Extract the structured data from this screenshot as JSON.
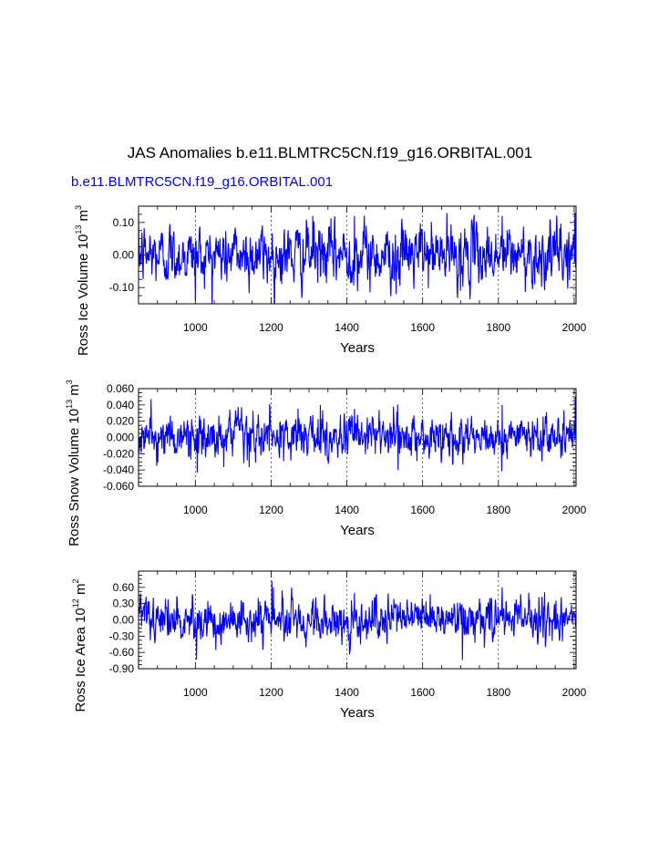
{
  "figure": {
    "title": "JAS Anomalies b.e11.BLMTRC5CN.f19_g16.ORBITAL.001",
    "subtitle": "b.e11.BLMTRC5CN.f19_g16.ORBITAL.001",
    "line_color": "#0000ff"
  },
  "chart_data": [
    {
      "type": "line",
      "ylabel": "Ross Ice Volume 10",
      "ylabel_exp1": "13",
      "ylabel_unit": " m",
      "ylabel_exp2": "3",
      "xlabel": "Years",
      "xlim": [
        850,
        2005
      ],
      "ylim": [
        -0.15,
        0.15
      ],
      "xticks": [
        1000,
        1200,
        1400,
        1600,
        1800,
        2000
      ],
      "yticks": [
        -0.1,
        0.0,
        0.1
      ],
      "ytick_labels": [
        "-0.10",
        "0.00",
        "0.10"
      ],
      "grid_x": true,
      "series": [
        {
          "amplitude": 0.04,
          "peaks": [
            [
              1000,
              -0.14
            ],
            [
              1310,
              0.12
            ],
            [
              1420,
              0.12
            ],
            [
              1530,
              -0.12
            ],
            [
              1700,
              -0.11
            ],
            [
              1810,
              0.12
            ],
            [
              2002,
              0.13
            ]
          ]
        }
      ]
    },
    {
      "type": "line",
      "ylabel": "Ross Snow Volume 10",
      "ylabel_exp1": "13",
      "ylabel_unit": " m",
      "ylabel_exp2": "3",
      "xlabel": "Years",
      "xlim": [
        850,
        2005
      ],
      "ylim": [
        -0.06,
        0.06
      ],
      "xticks": [
        1000,
        1200,
        1400,
        1600,
        1800,
        2000
      ],
      "yticks": [
        -0.06,
        -0.04,
        -0.02,
        0.0,
        0.02,
        0.04,
        0.06
      ],
      "ytick_labels": [
        "-0.060",
        "-0.040",
        "-0.020",
        "0.000",
        "0.020",
        "0.040",
        "0.060"
      ],
      "grid_x": true,
      "series": [
        {
          "amplitude": 0.012,
          "peaks": [
            [
              1005,
              -0.043
            ],
            [
              1330,
              0.04
            ],
            [
              1420,
              0.035
            ],
            [
              1535,
              -0.04
            ],
            [
              1810,
              0.04
            ],
            [
              2003,
              0.05
            ]
          ]
        }
      ]
    },
    {
      "type": "line",
      "ylabel": "Ross Ice Area 10",
      "ylabel_exp1": "12",
      "ylabel_unit": " m",
      "ylabel_exp2": "2",
      "xlabel": "Years",
      "xlim": [
        850,
        2005
      ],
      "ylim": [
        -0.9,
        0.9
      ],
      "xticks": [
        1000,
        1200,
        1400,
        1600,
        1800,
        2000
      ],
      "yticks": [
        -0.9,
        -0.6,
        -0.3,
        0.0,
        0.3,
        0.6
      ],
      "ytick_labels": [
        "-0.90",
        "-0.60",
        "-0.30",
        "0.00",
        "0.30",
        "0.60"
      ],
      "grid_x": true,
      "series": [
        {
          "amplitude": 0.17,
          "peaks": [
            [
              1003,
              -0.73
            ],
            [
              1202,
              0.72
            ],
            [
              1206,
              0.6
            ],
            [
              1420,
              0.5
            ],
            [
              1705,
              -0.74
            ],
            [
              1810,
              0.6
            ],
            [
              1880,
              0.5
            ]
          ]
        }
      ]
    }
  ]
}
